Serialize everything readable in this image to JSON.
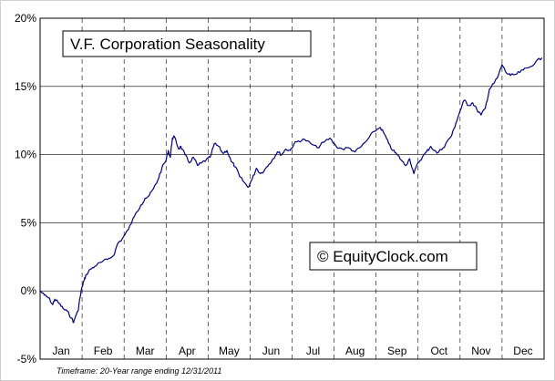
{
  "chart_data": {
    "type": "line",
    "title": "V.F. Corporation Seasonality",
    "watermark": "© EquityClock.com",
    "footnote": "Timeframe: 20-Year range ending 12/31/2011",
    "xlabel": "",
    "ylabel": "",
    "ylim": [
      -5,
      20
    ],
    "yticks": [
      -5,
      0,
      5,
      10,
      15,
      20
    ],
    "ytick_labels": [
      "-5%",
      "0%",
      "5%",
      "10%",
      "15%",
      "20%"
    ],
    "months": [
      "Jan",
      "Feb",
      "Mar",
      "Apr",
      "May",
      "Jun",
      "Jul",
      "Aug",
      "Sep",
      "Oct",
      "Nov",
      "Dec"
    ],
    "xlim": [
      0,
      12
    ],
    "grid": {
      "horizontal": true,
      "vertical_dashed": true
    },
    "line_color": "#000080",
    "series": [
      {
        "x": [
          0,
          0.1,
          0.2,
          0.3,
          0.35,
          0.45,
          0.55,
          0.65,
          0.75,
          0.8,
          0.85,
          0.9,
          0.95,
          1.0,
          1.05,
          1.1,
          1.2,
          1.3,
          1.45,
          1.6,
          1.75,
          1.85,
          1.95,
          2.1,
          2.25,
          2.4,
          2.5,
          2.6,
          2.7,
          2.8,
          2.9,
          3.0,
          3.05,
          3.1,
          3.15,
          3.2,
          3.3,
          3.35,
          3.45,
          3.55,
          3.65,
          3.75,
          3.85,
          3.95,
          4.05,
          4.15,
          4.25,
          4.35,
          4.45,
          4.55,
          4.65,
          4.75,
          4.85,
          4.95,
          5.05,
          5.15,
          5.25,
          5.35,
          5.45,
          5.55,
          5.65,
          5.75,
          5.85,
          5.95,
          6.05,
          6.15,
          6.3,
          6.45,
          6.6,
          6.75,
          6.9,
          7.05,
          7.2,
          7.35,
          7.5,
          7.65,
          7.8,
          7.95,
          8.1,
          8.2,
          8.3,
          8.4,
          8.5,
          8.6,
          8.7,
          8.8,
          8.9,
          9.0,
          9.1,
          9.2,
          9.3,
          9.45,
          9.6,
          9.7,
          9.8,
          9.9,
          10.0,
          10.1,
          10.2,
          10.3,
          10.4,
          10.5,
          10.6,
          10.7,
          10.8,
          10.9,
          11.0,
          11.1,
          11.2,
          11.35,
          11.5,
          11.65,
          11.8,
          11.95
        ],
        "y": [
          0,
          -0.3,
          -0.5,
          -1.0,
          -0.6,
          -0.9,
          -1.3,
          -1.5,
          -2.0,
          -2.3,
          -1.8,
          -1.5,
          -0.5,
          0.3,
          0.8,
          1.2,
          1.6,
          1.8,
          2.1,
          2.3,
          2.6,
          3.5,
          3.8,
          4.5,
          5.5,
          6.3,
          6.8,
          7.0,
          7.5,
          8.1,
          9.0,
          9.6,
          10.3,
          9.8,
          11.2,
          11.3,
          10.4,
          10.6,
          10.0,
          9.4,
          9.8,
          9.2,
          9.4,
          9.6,
          9.8,
          10.8,
          10.6,
          10.1,
          10.3,
          9.5,
          9.1,
          8.4,
          8.0,
          7.6,
          8.2,
          9.0,
          8.6,
          8.9,
          9.3,
          9.7,
          10.2,
          10.0,
          10.4,
          10.3,
          10.8,
          11.0,
          11.1,
          10.8,
          10.5,
          10.9,
          11.2,
          10.6,
          10.4,
          10.5,
          10.2,
          10.6,
          11.1,
          11.7,
          12.0,
          11.5,
          10.8,
          10.3,
          10.0,
          9.6,
          9.2,
          9.7,
          8.6,
          9.4,
          9.8,
          10.2,
          10.6,
          10.1,
          10.5,
          11.0,
          11.4,
          12.3,
          13.2,
          14.0,
          13.6,
          13.8,
          13.3,
          12.9,
          13.4,
          14.8,
          15.2,
          15.7,
          16.6,
          16.0,
          15.8,
          15.9,
          16.2,
          16.4,
          16.8,
          17.1
        ]
      }
    ]
  }
}
